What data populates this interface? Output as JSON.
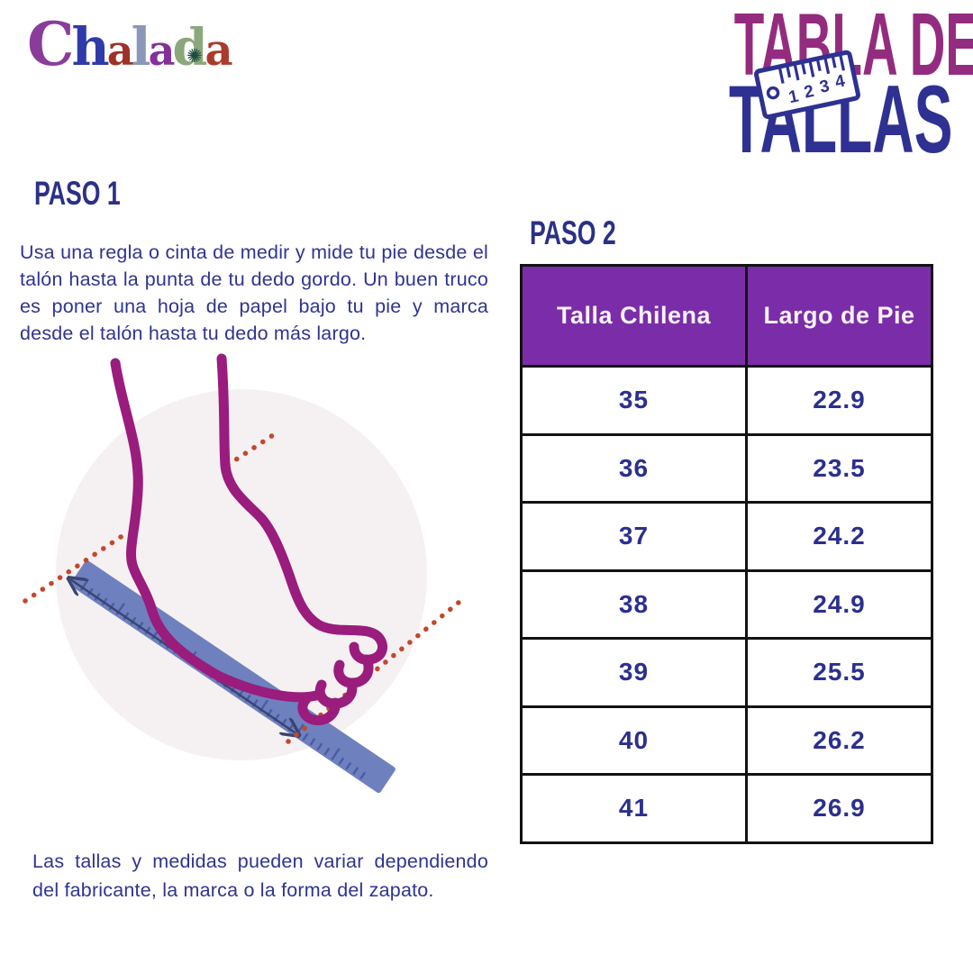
{
  "brand": {
    "name": "Chalada",
    "letters": [
      {
        "ch": "C",
        "style": "color:#8A3C9B;font-size:66px"
      },
      {
        "ch": "h",
        "style": "color:#2F3BA8;font-size:58px"
      },
      {
        "ch": "a",
        "style": "color:#9E3226;font-size:46px"
      },
      {
        "ch": "l",
        "style": "color:#8A97B8;font-size:58px"
      },
      {
        "ch": "a",
        "style": "color:#83309B;font-size:46px"
      },
      {
        "ch": "d",
        "style": "color:#8CA77C;font-size:56px"
      },
      {
        "ch": "a",
        "style": "color:#AB3A2C;font-size:48px"
      }
    ],
    "flower_icon": "✺",
    "flower_color": "#1E4D3D"
  },
  "title": {
    "line1": "TABLA DE",
    "line2": "TALLAS",
    "ruler": {
      "numbers": [
        "1",
        "2",
        "3",
        "4"
      ]
    }
  },
  "step1": {
    "heading": "PASO 1",
    "body": "Usa una regla o cinta de medir y mide tu pie desde el talón hasta la punta de tu dedo gordo. Un buen truco es poner una hoja de papel bajo tu pie y marca desde el talón hasta tu dedo más largo."
  },
  "step2": {
    "heading": "PASO 2"
  },
  "size_table": {
    "headers": [
      "Talla Chilena",
      "Largo de Pie"
    ],
    "rows": [
      [
        "35",
        "22.9"
      ],
      [
        "36",
        "23.5"
      ],
      [
        "37",
        "24.2"
      ],
      [
        "38",
        "24.9"
      ],
      [
        "39",
        "25.5"
      ],
      [
        "40",
        "26.2"
      ],
      [
        "41",
        "26.9"
      ]
    ]
  },
  "footer": {
    "text": "Las tallas y medidas pueden variar dependiendo del fabricante, la marca o la forma del zapato."
  },
  "colors": {
    "navy_text": "#2B3087",
    "title_magenta": "#932C7E",
    "title_navy": "#2E3192",
    "table_header_bg": "#7B2CA8",
    "table_border": "#121212",
    "foot_outline": "#9A1C7D",
    "ruler_blue": "#6F80BE",
    "ruler_tick": "#4A5BA4",
    "dotted_red": "#C2482A",
    "arrow_navy": "#3A4470",
    "circle_bg": "#F5F0F2"
  }
}
